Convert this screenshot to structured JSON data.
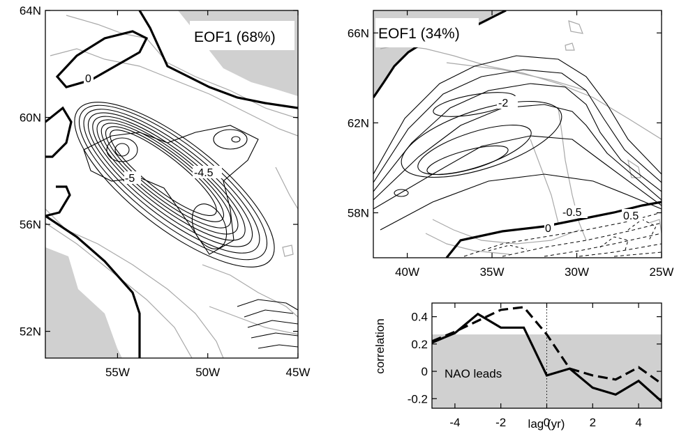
{
  "chart_data": [
    {
      "type": "contour",
      "panel": "left map",
      "title": "EOF1 (68%)",
      "contour_labels": [
        "0",
        "-5",
        "-4.5"
      ],
      "xticks": [
        "55W",
        "50W",
        "45W"
      ],
      "xtick_values": [
        -55,
        -50,
        -45
      ],
      "yticks": [
        "64N",
        "60N",
        "56N",
        "52N"
      ],
      "ytick_values": [
        64,
        60,
        56,
        52
      ],
      "xlim": [
        -59,
        -45
      ],
      "ylim": [
        51,
        64
      ],
      "colors": {
        "land": "#d0d0d0",
        "contour": "#000000",
        "bathymetry": "#a8a8a8"
      }
    },
    {
      "type": "contour",
      "panel": "right map",
      "title": "EOF1 (34%)",
      "contour_labels": [
        "-2",
        "-0.5",
        "0",
        "0.5"
      ],
      "xticks": [
        "40W",
        "35W",
        "30W",
        "25W"
      ],
      "xtick_values": [
        -40,
        -35,
        -30,
        -25
      ],
      "yticks": [
        "66N",
        "62N",
        "58N"
      ],
      "ytick_values": [
        66,
        62,
        58
      ],
      "xlim": [
        -42,
        -25
      ],
      "ylim": [
        56,
        67
      ],
      "colors": {
        "land": "#d0d0d0",
        "contour": "#000000",
        "bathymetry": "#a8a8a8"
      }
    },
    {
      "type": "line",
      "panel": "lag correlation",
      "xlabel": "lag (yr)",
      "ylabel": "correlation",
      "annotation": "NAO leads",
      "x": [
        -5,
        -4,
        -3,
        -2,
        -1,
        0,
        1,
        2,
        3,
        4,
        5
      ],
      "series": [
        {
          "style": "solid",
          "values": [
            0.21,
            0.28,
            0.42,
            0.32,
            0.32,
            -0.03,
            0.02,
            -0.12,
            -0.17,
            -0.07,
            -0.22
          ]
        },
        {
          "style": "dashed",
          "values": [
            0.22,
            0.29,
            0.37,
            0.45,
            0.47,
            0.27,
            0.02,
            -0.03,
            -0.06,
            0.03,
            -0.09
          ]
        }
      ],
      "significance_level": 0.27,
      "xticks": [
        "-4",
        "-2",
        "0",
        "2",
        "4"
      ],
      "xtick_values": [
        -4,
        -2,
        0,
        2,
        4
      ],
      "yticks": [
        "0.4",
        "0.2",
        "0",
        "-0.2"
      ],
      "ytick_values": [
        0.4,
        0.2,
        0,
        -0.2
      ],
      "xlim": [
        -5,
        5
      ],
      "ylim": [
        -0.27,
        0.5
      ],
      "grid": false,
      "colors": {
        "shade": "#d0d0d0",
        "line": "#000000"
      }
    }
  ]
}
